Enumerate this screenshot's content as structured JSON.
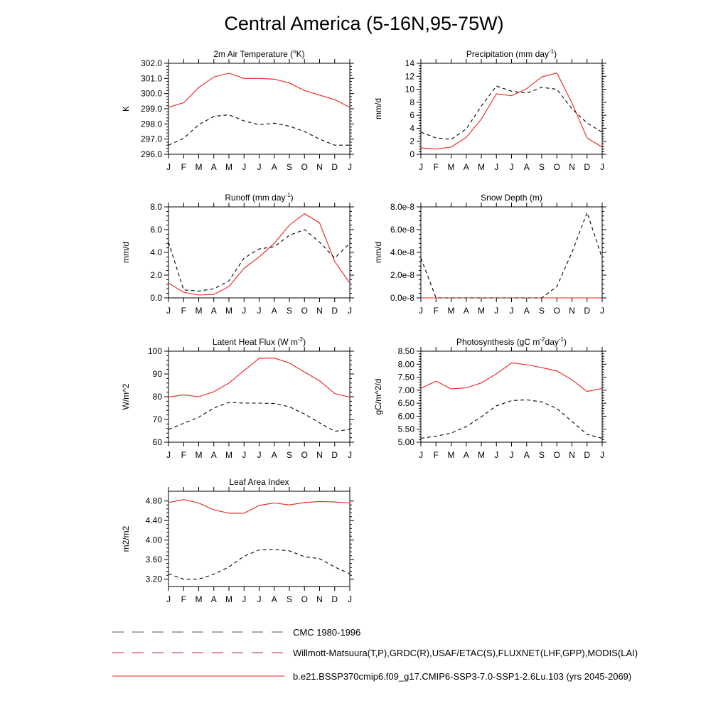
{
  "title": "Central America (5-16N,95-75W)",
  "months": [
    "J",
    "F",
    "M",
    "A",
    "M",
    "J",
    "J",
    "A",
    "S",
    "O",
    "N",
    "D",
    "J"
  ],
  "colors": {
    "model": "#e8221e",
    "obs": "#000000",
    "legend_obs2": "#c0203a"
  },
  "legend": [
    {
      "label": "CMC 1980-1996",
      "style": "dashed"
    },
    {
      "label": "Willmott-Matsuura(T,P),GRDC(R),USAF/ETAC(S),FLUXNET(LHF,GPP),MODIS(LAI)",
      "style": "dashed-colored"
    },
    {
      "label": "b.e21.BSSP370cmip6.f09_g17.CMIP6-SSP3-7.0-SSP1-2.6Lu.103 (yrs 2045-2069)",
      "style": "solid"
    }
  ],
  "chart_data": [
    {
      "type": "line",
      "title_parts": [
        "2m Air Temperature (",
        "o",
        "K)"
      ],
      "ylabel": "K",
      "ylim": [
        296.0,
        302.0
      ],
      "yticks": [
        296.0,
        297.0,
        298.0,
        299.0,
        300.0,
        301.0,
        302.0
      ],
      "ytick_labels": [
        "296.0",
        "297.0",
        "298.0",
        "299.0",
        "300.0",
        "301.0",
        "302.0"
      ],
      "series": [
        {
          "role": "model",
          "values": [
            299.1,
            299.4,
            300.4,
            301.1,
            301.35,
            301.0,
            301.0,
            300.95,
            300.7,
            300.2,
            299.9,
            299.6,
            299.1
          ]
        },
        {
          "role": "obs",
          "values": [
            296.6,
            297.05,
            297.95,
            298.5,
            298.6,
            298.2,
            297.95,
            298.05,
            297.85,
            297.5,
            297.0,
            296.6,
            296.6
          ]
        }
      ]
    },
    {
      "type": "line",
      "title_parts": [
        "Precipitation (mm day",
        "-1",
        ")"
      ],
      "ylabel": "mm/d",
      "ylim": [
        0,
        14
      ],
      "yticks": [
        0,
        2,
        4,
        6,
        8,
        10,
        12,
        14
      ],
      "ytick_labels": [
        "0",
        "2",
        "4",
        "6",
        "8",
        "10",
        "12",
        "14"
      ],
      "series": [
        {
          "role": "model",
          "values": [
            1.0,
            0.8,
            1.1,
            2.6,
            5.4,
            9.3,
            9.0,
            10.1,
            11.9,
            12.5,
            7.9,
            2.5,
            1.1
          ]
        },
        {
          "role": "obs",
          "values": [
            3.4,
            2.5,
            2.3,
            3.9,
            7.4,
            10.5,
            9.7,
            9.4,
            10.3,
            10.0,
            7.0,
            4.8,
            3.4
          ]
        }
      ]
    },
    {
      "type": "line",
      "title_parts": [
        "Runoff (mm day",
        "-1",
        ")"
      ],
      "ylabel": "mm/d",
      "ylim": [
        0,
        8
      ],
      "yticks": [
        0,
        2,
        4,
        6,
        8
      ],
      "ytick_labels": [
        "0.0",
        "2.0",
        "4.0",
        "6.0",
        "8.0"
      ],
      "series": [
        {
          "role": "model",
          "values": [
            1.3,
            0.5,
            0.25,
            0.3,
            1.0,
            2.6,
            3.6,
            4.8,
            6.4,
            7.4,
            6.6,
            3.2,
            1.3
          ]
        },
        {
          "role": "obs",
          "values": [
            4.9,
            0.7,
            0.6,
            0.8,
            1.5,
            3.5,
            4.3,
            4.5,
            5.5,
            6.0,
            4.9,
            3.5,
            4.8
          ]
        }
      ]
    },
    {
      "type": "line",
      "title_parts": [
        "Snow Depth (m)"
      ],
      "ylabel": "mm/d",
      "ylim": [
        0,
        8e-08
      ],
      "yticks": [
        0,
        2e-08,
        4e-08,
        6e-08,
        8e-08
      ],
      "ytick_labels": [
        "0.0e-8",
        "2.0e-8",
        "4.0e-8",
        "6.0e-8",
        "8.0e-8"
      ],
      "series": [
        {
          "role": "model",
          "values": [
            0,
            0,
            0,
            0,
            0,
            0,
            0,
            0,
            0,
            0,
            0,
            0,
            0
          ]
        },
        {
          "role": "obs",
          "values": [
            3.5e-08,
            0,
            0,
            0,
            0,
            0,
            0,
            0,
            0,
            1e-08,
            4e-08,
            7.5e-08,
            3.5e-08
          ]
        }
      ]
    },
    {
      "type": "line",
      "title_parts": [
        "Latent Heat Flux (W m",
        "-2",
        ")"
      ],
      "ylabel": "W/m^2",
      "ylim": [
        60,
        100
      ],
      "yticks": [
        60,
        70,
        80,
        90,
        100
      ],
      "ytick_labels": [
        "60",
        "70",
        "80",
        "90",
        "100"
      ],
      "series": [
        {
          "role": "model",
          "values": [
            79.8,
            80.8,
            80.0,
            82.2,
            86.0,
            91.5,
            96.8,
            97.0,
            94.8,
            90.8,
            87.0,
            81.4,
            79.8
          ]
        },
        {
          "role": "obs",
          "values": [
            65.6,
            68.3,
            71.0,
            75.0,
            77.5,
            77.2,
            77.2,
            77.0,
            75.6,
            72.4,
            68.5,
            64.8,
            65.6
          ]
        }
      ]
    },
    {
      "type": "line",
      "title_parts": [
        "Photosynthesis (gC m",
        "-2",
        "day",
        "-1",
        ")"
      ],
      "ylabel": "gC/m^2/d",
      "ylim": [
        5.0,
        8.5
      ],
      "yticks": [
        5.0,
        5.5,
        6.0,
        6.5,
        7.0,
        7.5,
        8.0,
        8.5
      ],
      "ytick_labels": [
        "5.00",
        "5.50",
        "6.00",
        "6.50",
        "7.00",
        "7.50",
        "8.00",
        "8.50"
      ],
      "series": [
        {
          "role": "model",
          "values": [
            7.07,
            7.35,
            7.05,
            7.09,
            7.28,
            7.63,
            8.05,
            7.98,
            7.87,
            7.74,
            7.4,
            6.95,
            7.07
          ]
        },
        {
          "role": "obs",
          "values": [
            5.15,
            5.23,
            5.35,
            5.6,
            5.98,
            6.4,
            6.6,
            6.63,
            6.55,
            6.3,
            5.8,
            5.3,
            5.15
          ]
        }
      ]
    },
    {
      "type": "line",
      "title_parts": [
        "Leaf Area Index"
      ],
      "ylabel": "m2/m2",
      "ylim": [
        3.05,
        5.0
      ],
      "yticks": [
        3.2,
        3.6,
        4.0,
        4.4,
        4.8
      ],
      "ytick_labels": [
        "3.20",
        "3.60",
        "4.00",
        "4.40",
        "4.80"
      ],
      "series": [
        {
          "role": "model",
          "values": [
            4.77,
            4.83,
            4.76,
            4.62,
            4.55,
            4.55,
            4.71,
            4.76,
            4.72,
            4.77,
            4.79,
            4.78,
            4.76
          ]
        },
        {
          "role": "obs",
          "values": [
            3.31,
            3.2,
            3.2,
            3.3,
            3.45,
            3.67,
            3.8,
            3.81,
            3.78,
            3.66,
            3.62,
            3.45,
            3.31
          ]
        }
      ]
    }
  ]
}
